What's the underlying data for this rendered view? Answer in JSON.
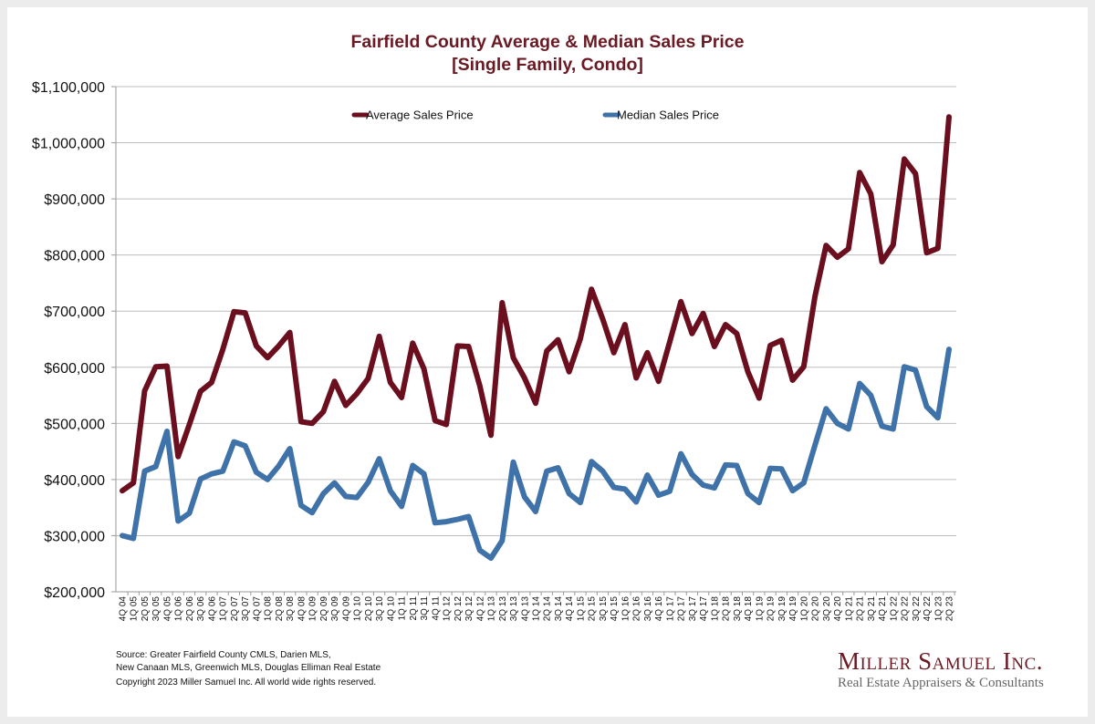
{
  "title_line1": "Fairfield County Average & Median Sales Price",
  "title_line2": "[Single Family, Condo]",
  "footer": {
    "source_line1": "Source:  Greater Fairfield County CMLS, Darien MLS,",
    "source_line2": "New Canaan MLS, Greenwich MLS, Douglas Elliman Real Estate",
    "copyright": "Copyright 2023 Miller Samuel Inc.  All world wide rights reserved."
  },
  "logo": {
    "name": "Miller Samuel Inc.",
    "tagline": "Real Estate Appraisers & Consultants"
  },
  "chart_data": {
    "type": "line",
    "title": "Fairfield County Average & Median Sales Price [Single Family, Condo]",
    "xlabel": "",
    "ylabel": "",
    "ylim": [
      200000,
      1100000
    ],
    "yticks": [
      200000,
      300000,
      400000,
      500000,
      600000,
      700000,
      800000,
      900000,
      1000000,
      1100000
    ],
    "ytick_labels": [
      "$200,000",
      "$300,000",
      "$400,000",
      "$500,000",
      "$600,000",
      "$700,000",
      "$800,000",
      "$900,000",
      "$1,000,000",
      "$1,100,000"
    ],
    "grid": true,
    "legend_position": "top",
    "categories": [
      "4Q 04",
      "1Q 05",
      "2Q 05",
      "3Q 05",
      "4Q 05",
      "1Q 06",
      "2Q 06",
      "3Q 06",
      "4Q 06",
      "1Q 07",
      "2Q 07",
      "3Q 07",
      "4Q 07",
      "1Q 08",
      "2Q 08",
      "3Q 08",
      "4Q 08",
      "1Q 09",
      "2Q 09",
      "3Q 09",
      "4Q 09",
      "1Q 10",
      "2Q 10",
      "3Q 10",
      "4Q 10",
      "1Q 11",
      "2Q 11",
      "3Q 11",
      "4Q 11",
      "1Q 12",
      "2Q 12",
      "3Q 12",
      "4Q 12",
      "1Q 13",
      "2Q 13",
      "3Q 13",
      "4Q 13",
      "1Q 14",
      "2Q 14",
      "3Q 14",
      "4Q 14",
      "1Q 15",
      "2Q 15",
      "3Q 15",
      "4Q 15",
      "1Q 16",
      "2Q 16",
      "3Q 16",
      "4Q 16",
      "1Q 17",
      "2Q 17",
      "3Q 17",
      "4Q 17",
      "1Q 18",
      "2Q 18",
      "3Q 18",
      "4Q 18",
      "1Q 19",
      "2Q 19",
      "3Q 19",
      "4Q 19",
      "1Q 20",
      "2Q 20",
      "3Q 20",
      "4Q 20",
      "1Q 21",
      "2Q 21",
      "3Q 21",
      "4Q 21",
      "1Q 22",
      "2Q 22",
      "3Q 22",
      "4Q 22",
      "1Q 23",
      "2Q 23"
    ],
    "series": [
      {
        "name": "Average Sales Price",
        "color": "#6b0f1f",
        "values": [
          380000,
          394000,
          558000,
          601000,
          602000,
          441000,
          498000,
          557000,
          573000,
          632000,
          699000,
          697000,
          638000,
          617000,
          638000,
          662000,
          503000,
          500000,
          521000,
          575000,
          532000,
          553000,
          580000,
          655000,
          573000,
          546000,
          643000,
          597000,
          505000,
          498000,
          638000,
          637000,
          567000,
          479000,
          715000,
          617000,
          581000,
          536000,
          629000,
          649000,
          592000,
          651000,
          739000,
          686000,
          626000,
          676000,
          581000,
          626000,
          575000,
          645000,
          717000,
          660000,
          696000,
          637000,
          676000,
          660000,
          592000,
          545000,
          639000,
          648000,
          577000,
          601000,
          726000,
          817000,
          796000,
          811000,
          947000,
          909000,
          788000,
          818000,
          971000,
          945000,
          804000,
          812000,
          1046000
        ]
      },
      {
        "name": "Median Sales Price",
        "color": "#3f72a8",
        "values": [
          300000,
          295000,
          415000,
          423000,
          486000,
          326000,
          340000,
          401000,
          410000,
          415000,
          467000,
          460000,
          413000,
          400000,
          424000,
          455000,
          354000,
          341000,
          375000,
          394000,
          370000,
          368000,
          395000,
          437000,
          380000,
          352000,
          425000,
          410000,
          323000,
          325000,
          329000,
          334000,
          274000,
          260000,
          291000,
          431000,
          369000,
          343000,
          415000,
          421000,
          375000,
          359000,
          432000,
          415000,
          386000,
          383000,
          360000,
          408000,
          372000,
          379000,
          446000,
          409000,
          390000,
          385000,
          426000,
          425000,
          375000,
          359000,
          420000,
          419000,
          380000,
          394000,
          461000,
          526000,
          500000,
          490000,
          571000,
          550000,
          495000,
          490000,
          601000,
          595000,
          530000,
          510000,
          632000
        ]
      }
    ]
  }
}
